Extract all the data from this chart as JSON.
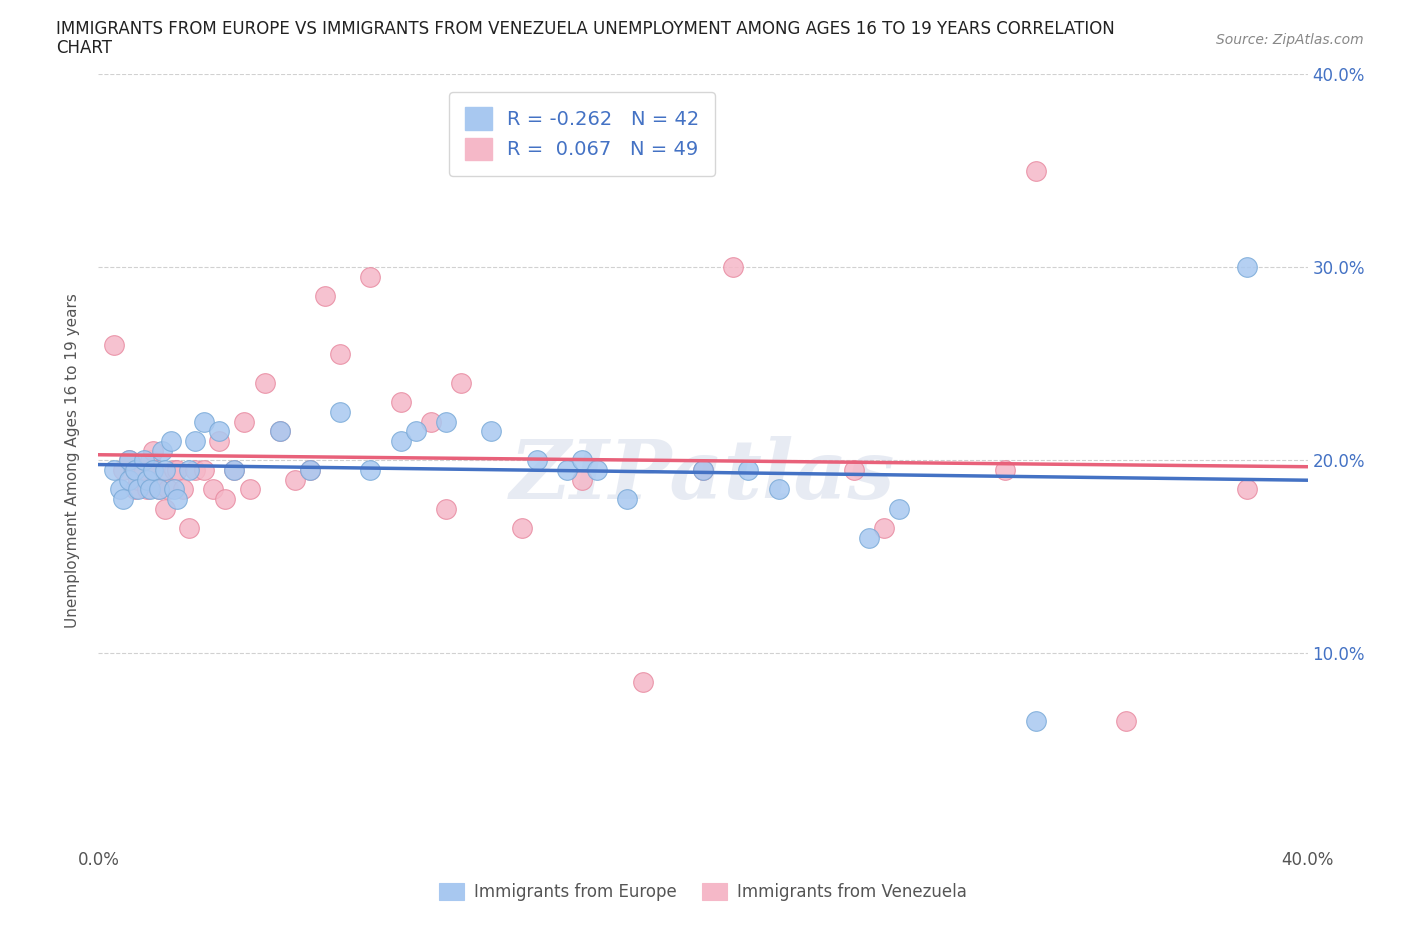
{
  "title_line1": "IMMIGRANTS FROM EUROPE VS IMMIGRANTS FROM VENEZUELA UNEMPLOYMENT AMONG AGES 16 TO 19 YEARS CORRELATION",
  "title_line2": "CHART",
  "source": "Source: ZipAtlas.com",
  "ylabel": "Unemployment Among Ages 16 to 19 years",
  "xlim": [
    0.0,
    0.4
  ],
  "ylim": [
    0.0,
    0.4
  ],
  "xticks": [
    0.0,
    0.1,
    0.2,
    0.3,
    0.4
  ],
  "yticks": [
    0.1,
    0.2,
    0.3,
    0.4
  ],
  "xticklabels": [
    "0.0%",
    "",
    "",
    "",
    "40.0%"
  ],
  "europe_color": "#A8C8F0",
  "europe_edge_color": "#7AAAD8",
  "venezuela_color": "#F5B8C8",
  "venezuela_edge_color": "#E88AA0",
  "europe_line_color": "#4472C4",
  "venezuela_line_color": "#E8617A",
  "right_tick_color": "#4472C4",
  "legend_europe_label": "Immigrants from Europe",
  "legend_venezuela_label": "Immigrants from Venezuela",
  "europe_R": -0.262,
  "europe_N": 42,
  "venezuela_R": 0.067,
  "venezuela_N": 49,
  "europe_scatter_x": [
    0.005,
    0.007,
    0.008,
    0.01,
    0.01,
    0.012,
    0.013,
    0.015,
    0.016,
    0.017,
    0.018,
    0.02,
    0.021,
    0.022,
    0.024,
    0.025,
    0.026,
    0.03,
    0.032,
    0.035,
    0.04,
    0.045,
    0.06,
    0.07,
    0.08,
    0.09,
    0.1,
    0.105,
    0.115,
    0.13,
    0.145,
    0.155,
    0.16,
    0.165,
    0.175,
    0.2,
    0.215,
    0.225,
    0.255,
    0.265,
    0.31,
    0.38
  ],
  "europe_scatter_y": [
    0.195,
    0.185,
    0.18,
    0.19,
    0.2,
    0.195,
    0.185,
    0.2,
    0.19,
    0.185,
    0.195,
    0.185,
    0.205,
    0.195,
    0.21,
    0.185,
    0.18,
    0.195,
    0.21,
    0.22,
    0.215,
    0.195,
    0.215,
    0.195,
    0.225,
    0.195,
    0.21,
    0.215,
    0.22,
    0.215,
    0.2,
    0.195,
    0.2,
    0.195,
    0.18,
    0.195,
    0.195,
    0.185,
    0.16,
    0.175,
    0.065,
    0.3
  ],
  "venezuela_scatter_x": [
    0.005,
    0.008,
    0.01,
    0.012,
    0.012,
    0.013,
    0.015,
    0.016,
    0.017,
    0.018,
    0.018,
    0.02,
    0.02,
    0.022,
    0.023,
    0.025,
    0.026,
    0.028,
    0.03,
    0.032,
    0.035,
    0.038,
    0.04,
    0.042,
    0.045,
    0.048,
    0.05,
    0.055,
    0.06,
    0.065,
    0.07,
    0.075,
    0.08,
    0.09,
    0.1,
    0.11,
    0.115,
    0.12,
    0.14,
    0.16,
    0.18,
    0.2,
    0.21,
    0.25,
    0.26,
    0.3,
    0.31,
    0.34,
    0.38
  ],
  "venezuela_scatter_y": [
    0.26,
    0.195,
    0.2,
    0.185,
    0.195,
    0.19,
    0.195,
    0.185,
    0.2,
    0.205,
    0.195,
    0.19,
    0.185,
    0.175,
    0.185,
    0.195,
    0.195,
    0.185,
    0.165,
    0.195,
    0.195,
    0.185,
    0.21,
    0.18,
    0.195,
    0.22,
    0.185,
    0.24,
    0.215,
    0.19,
    0.195,
    0.285,
    0.255,
    0.295,
    0.23,
    0.22,
    0.175,
    0.24,
    0.165,
    0.19,
    0.085,
    0.195,
    0.3,
    0.195,
    0.165,
    0.195,
    0.35,
    0.065,
    0.185
  ],
  "watermark": "ZIPatlas",
  "background_color": "#FFFFFF"
}
